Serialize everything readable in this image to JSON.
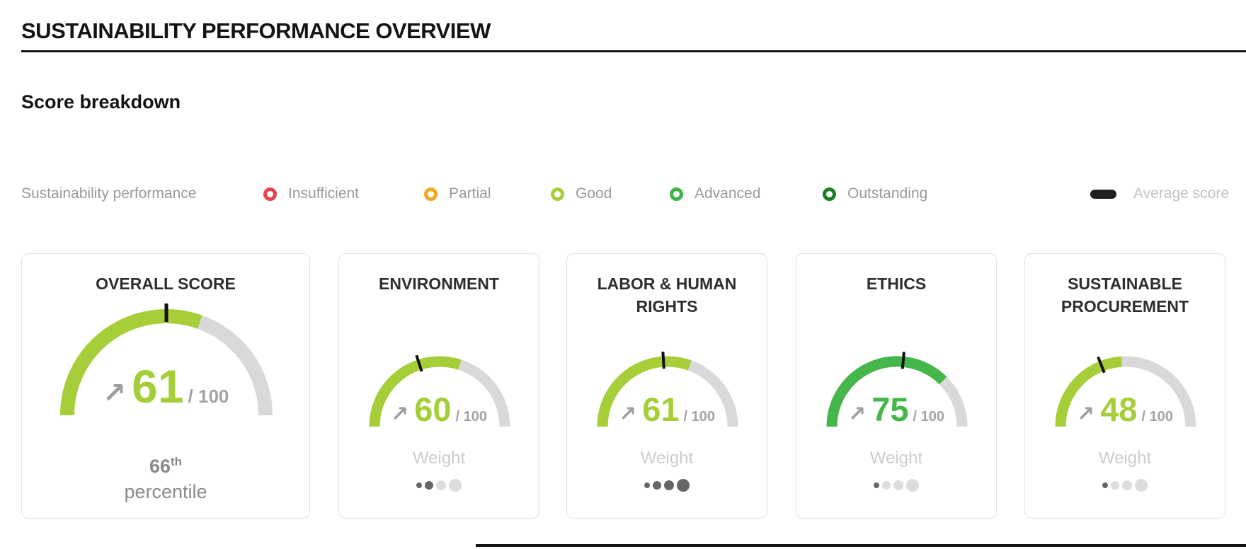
{
  "page": {
    "title": "SUSTAINABILITY PERFORMANCE OVERVIEW",
    "section_title": "Score breakdown"
  },
  "legend": {
    "caption": "Sustainability performance",
    "items": [
      {
        "label": "Insufficient",
        "color": "#e8414a"
      },
      {
        "label": "Partial",
        "color": "#f5a623"
      },
      {
        "label": "Good",
        "color": "#a6ce39"
      },
      {
        "label": "Advanced",
        "color": "#3fb549"
      },
      {
        "label": "Outstanding",
        "color": "#1d7d24"
      }
    ],
    "average": {
      "label": "Average score",
      "color": "#1f1f1f"
    }
  },
  "shared": {
    "out_of": "/ 100",
    "trend_up_glyph": "↗"
  },
  "cards": [
    {
      "title": "OVERALL SCORE",
      "score": 61,
      "max": 100,
      "average": 50,
      "color": "#a6ce39",
      "percentile": {
        "value": "66",
        "suffix": "th",
        "label": "percentile"
      }
    },
    {
      "title": "ENVIRONMENT",
      "score": 60,
      "max": 100,
      "average": 40,
      "color": "#a6ce39",
      "weight": {
        "label": "Weight",
        "active": 2,
        "total": 4
      }
    },
    {
      "title": "LABOR & HUMAN RIGHTS",
      "score": 61,
      "max": 100,
      "average": 48,
      "color": "#a6ce39",
      "weight": {
        "label": "Weight",
        "active": 4,
        "total": 4
      }
    },
    {
      "title": "ETHICS",
      "score": 75,
      "max": 100,
      "average": 53,
      "color": "#45b649",
      "weight": {
        "label": "Weight",
        "active": 1,
        "total": 4
      }
    },
    {
      "title": "SUSTAINABLE PROCUREMENT",
      "score": 48,
      "max": 100,
      "average": 38,
      "color": "#a6ce39",
      "weight": {
        "label": "Weight",
        "active": 1,
        "total": 4
      }
    }
  ],
  "colors": {
    "track": "#d9d9d9",
    "tick": "#111111",
    "dot_active": "#666666",
    "dot_inactive": "#dddddd"
  }
}
